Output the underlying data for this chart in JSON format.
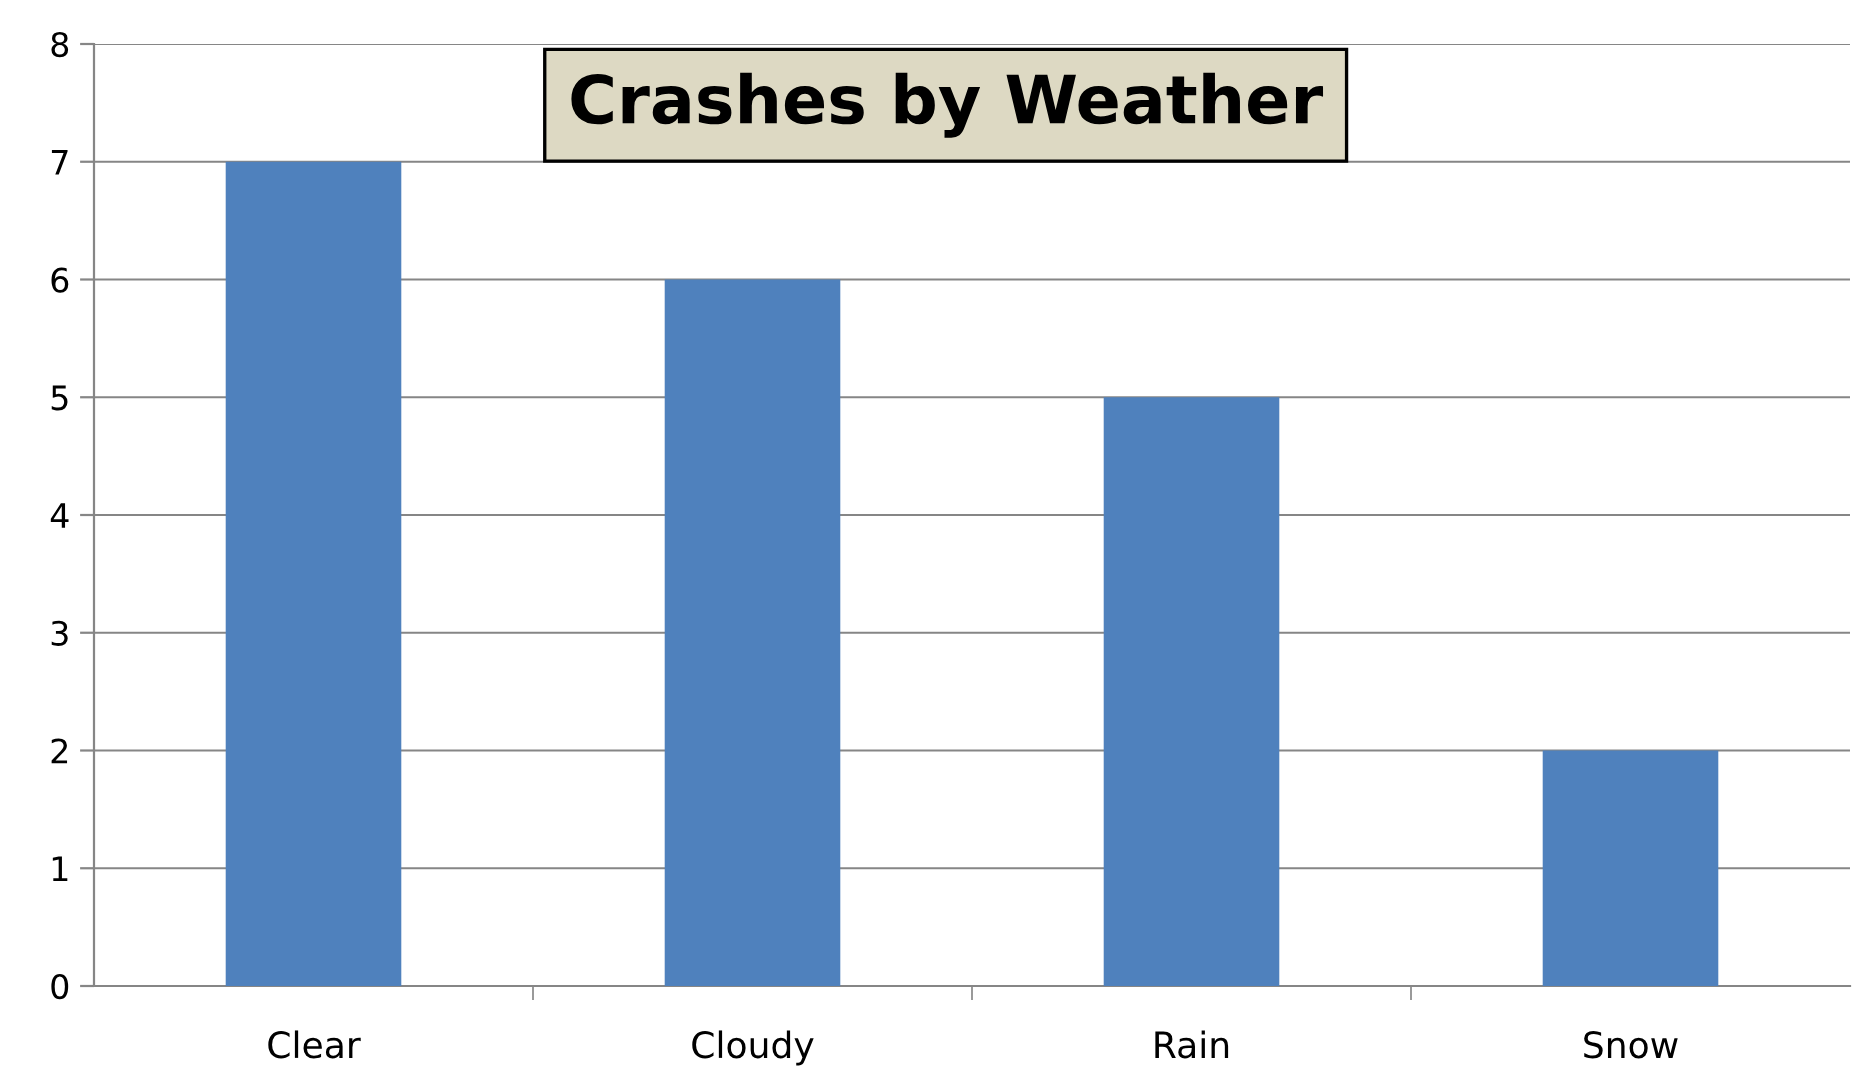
{
  "chart_data": {
    "type": "bar",
    "title": "Crashes by Weather",
    "categories": [
      "Clear",
      "Cloudy",
      "Rain",
      "Snow"
    ],
    "values": [
      7,
      6,
      5,
      2
    ],
    "color": "#4f81bd",
    "ylim": [
      0,
      8
    ],
    "yticks": [
      0,
      1,
      2,
      3,
      4,
      5,
      6,
      7,
      8
    ],
    "grid": "y",
    "legend": false
  }
}
